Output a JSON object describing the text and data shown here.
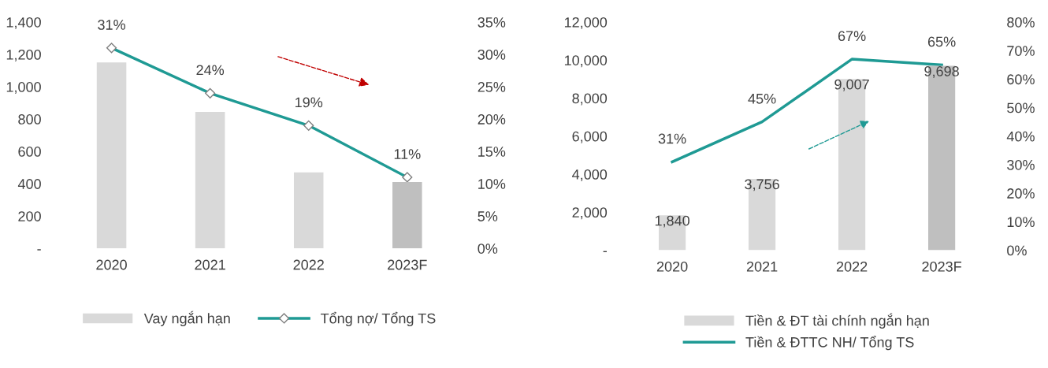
{
  "chart_data": [
    {
      "type": "bar",
      "categories": [
        "2020",
        "2021",
        "2022",
        "2023F"
      ],
      "series": [
        {
          "name": "Vay ngắn hạn",
          "colors": [
            "#d9d9d9",
            "#d9d9d9",
            "#d9d9d9",
            "#bfbfbf"
          ],
          "values": [
            1150,
            845,
            470,
            410
          ]
        },
        {
          "name": "Tổng nợ/ Tổng TS",
          "type": "line",
          "axis": "y2",
          "color": "#1f9a94",
          "marker": "diamond",
          "values": [
            31,
            24,
            19,
            11
          ],
          "value_labels": [
            "31%",
            "24%",
            "19%",
            "11%"
          ]
        }
      ],
      "ylim": [
        0,
        1400
      ],
      "yticks": [
        {
          "value": 0,
          "label": "-"
        },
        {
          "value": 200,
          "label": "200"
        },
        {
          "value": 400,
          "label": "400"
        },
        {
          "value": 600,
          "label": "600"
        },
        {
          "value": 800,
          "label": "800"
        },
        {
          "value": 1000,
          "label": "1,000"
        },
        {
          "value": 1200,
          "label": "1,200"
        },
        {
          "value": 1400,
          "label": "1,400"
        }
      ],
      "y2lim": [
        0,
        35
      ],
      "y2ticks": [
        {
          "value": 0,
          "label": "0%"
        },
        {
          "value": 5,
          "label": "5%"
        },
        {
          "value": 10,
          "label": "10%"
        },
        {
          "value": 15,
          "label": "15%"
        },
        {
          "value": 20,
          "label": "20%"
        },
        {
          "value": 25,
          "label": "25%"
        },
        {
          "value": 30,
          "label": "30%"
        },
        {
          "value": 35,
          "label": "35%"
        }
      ],
      "legend": "bottom",
      "grid": false
    },
    {
      "type": "bar",
      "categories": [
        "2020",
        "2021",
        "2022",
        "2023F"
      ],
      "series": [
        {
          "name": "Tiền & ĐT tài chính ngắn hạn",
          "colors": [
            "#d9d9d9",
            "#d9d9d9",
            "#d9d9d9",
            "#bfbfbf"
          ],
          "values": [
            1840,
            3756,
            9007,
            9698
          ],
          "value_labels": [
            "1,840",
            "3,756",
            "9,007",
            "9,698"
          ]
        },
        {
          "name": "Tiền & ĐTTC NH/ Tổng TS",
          "type": "line",
          "axis": "y2",
          "color": "#1f9a94",
          "marker": "none",
          "values": [
            31,
            45,
            67,
            65
          ],
          "value_labels": [
            "31%",
            "45%",
            "67%",
            "65%"
          ]
        }
      ],
      "ylim": [
        0,
        12000
      ],
      "yticks": [
        {
          "value": 0,
          "label": "-"
        },
        {
          "value": 2000,
          "label": "2,000"
        },
        {
          "value": 4000,
          "label": "4,000"
        },
        {
          "value": 6000,
          "label": "6,000"
        },
        {
          "value": 8000,
          "label": "8,000"
        },
        {
          "value": 10000,
          "label": "10,000"
        },
        {
          "value": 12000,
          "label": "12,000"
        }
      ],
      "y2lim": [
        0,
        80
      ],
      "y2ticks": [
        {
          "value": 0,
          "label": "0%"
        },
        {
          "value": 10,
          "label": "10%"
        },
        {
          "value": 20,
          "label": "20%"
        },
        {
          "value": 30,
          "label": "30%"
        },
        {
          "value": 40,
          "label": "40%"
        },
        {
          "value": 50,
          "label": "50%"
        },
        {
          "value": 60,
          "label": "60%"
        },
        {
          "value": 70,
          "label": "70%"
        },
        {
          "value": 80,
          "label": "80%"
        }
      ],
      "legend": "bottom",
      "grid": false
    }
  ]
}
